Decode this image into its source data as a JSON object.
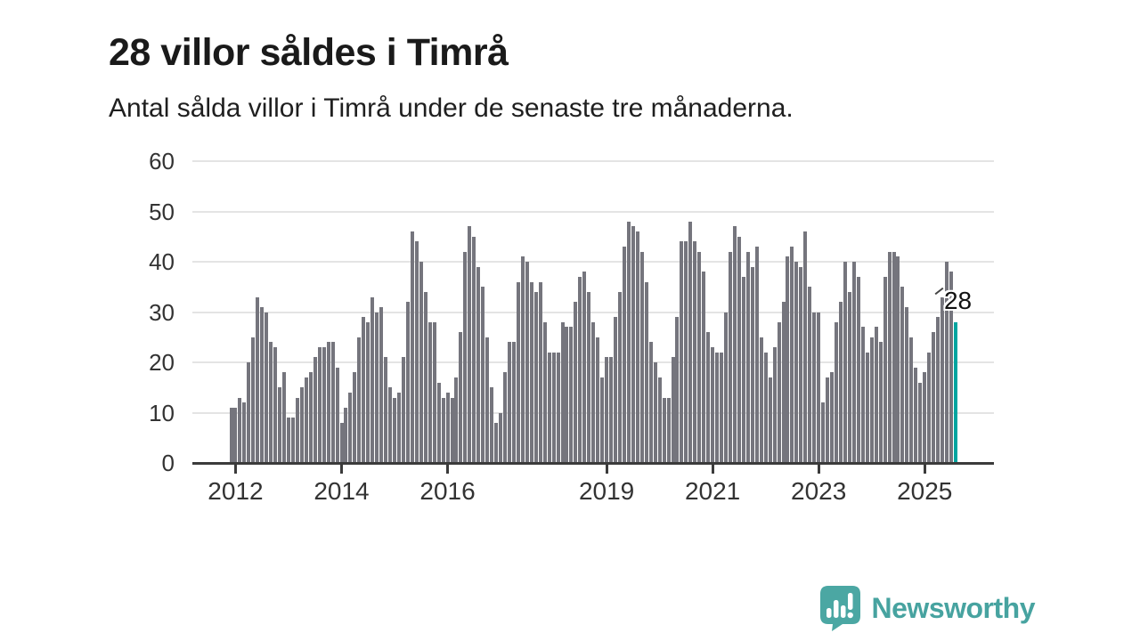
{
  "header": {
    "title": "28 villor såldes i Timrå",
    "subtitle": "Antal sålda villor i Timrå under de senaste tre månaderna."
  },
  "chart_data": {
    "type": "bar",
    "title": "28 villor såldes i Timrå",
    "subtitle": "Antal sålda villor i Timrå under de senaste tre månaderna.",
    "xlabel": "",
    "ylabel": "",
    "unit": "sålda villor (rullande 3 månader)",
    "start_month": "2011-12",
    "end_month": "2025-08",
    "ylim": [
      0,
      60
    ],
    "y_ticks": [
      0,
      10,
      20,
      30,
      40,
      50,
      60
    ],
    "grid": "horizontal",
    "legend": "none",
    "x_ticks": [
      {
        "label": "2012",
        "month_index": 1
      },
      {
        "label": "2014",
        "month_index": 25
      },
      {
        "label": "2016",
        "month_index": 49
      },
      {
        "label": "2019",
        "month_index": 85
      },
      {
        "label": "2021",
        "month_index": 109
      },
      {
        "label": "2023",
        "month_index": 133
      },
      {
        "label": "2025",
        "month_index": 157
      }
    ],
    "values": [
      11,
      11,
      13,
      12,
      20,
      25,
      33,
      31,
      30,
      24,
      23,
      15,
      18,
      9,
      9,
      13,
      15,
      17,
      18,
      21,
      23,
      23,
      24,
      24,
      19,
      8,
      11,
      14,
      18,
      25,
      29,
      28,
      33,
      30,
      31,
      21,
      15,
      13,
      14,
      21,
      32,
      46,
      44,
      40,
      34,
      28,
      28,
      16,
      13,
      14,
      13,
      17,
      26,
      42,
      47,
      45,
      39,
      35,
      25,
      15,
      8,
      10,
      18,
      24,
      24,
      36,
      41,
      40,
      36,
      34,
      36,
      28,
      22,
      22,
      22,
      28,
      27,
      27,
      32,
      37,
      38,
      34,
      28,
      25,
      17,
      21,
      21,
      29,
      34,
      43,
      48,
      47,
      46,
      42,
      36,
      24,
      20,
      17,
      13,
      13,
      21,
      29,
      44,
      44,
      48,
      44,
      42,
      38,
      26,
      23,
      22,
      22,
      30,
      42,
      47,
      45,
      37,
      42,
      39,
      43,
      25,
      22,
      17,
      23,
      28,
      32,
      41,
      43,
      40,
      39,
      46,
      35,
      30,
      30,
      12,
      17,
      18,
      28,
      32,
      40,
      34,
      40,
      37,
      27,
      22,
      25,
      27,
      24,
      37,
      42,
      42,
      41,
      35,
      31,
      25,
      19,
      16,
      18,
      22,
      26,
      29,
      33,
      40,
      38,
      28
    ],
    "highlight_index": 164,
    "bar_color": "#75757d",
    "highlight_color": "#00a5a0",
    "axis_color": "#3b3b3b",
    "grid_color": "#e4e4e4",
    "annotation": {
      "text": "28",
      "value": 28
    }
  },
  "footer": {
    "brand": "Newsworthy",
    "brand_color": "#47a3a0",
    "logo": "newsworthy-speech-bubble-chart-icon"
  }
}
